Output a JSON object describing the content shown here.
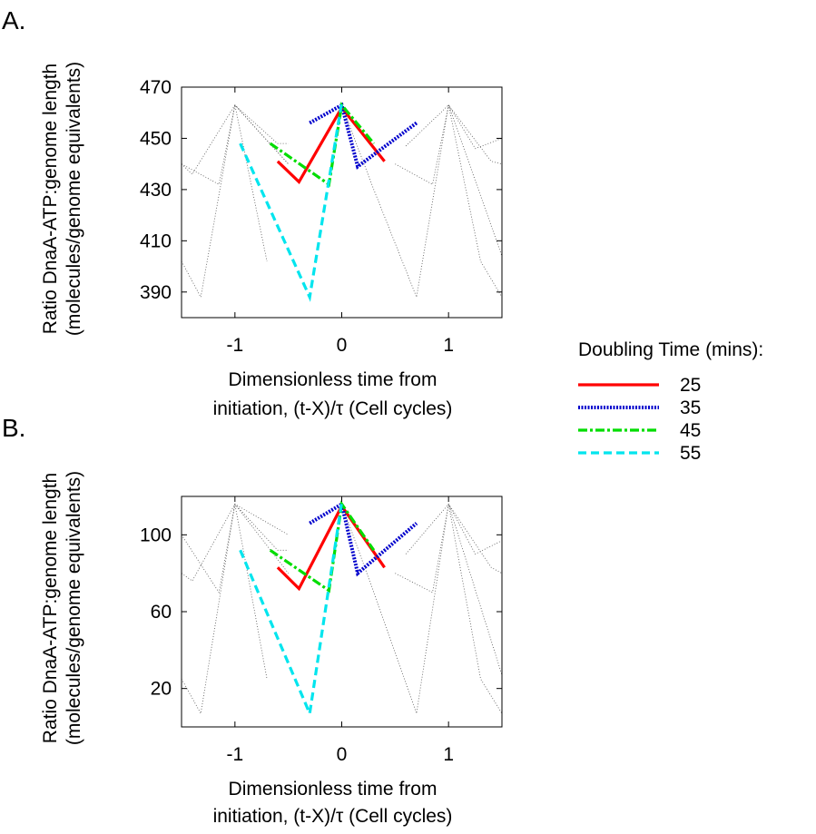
{
  "figure": {
    "legend": {
      "title": "Doubling Time (mins):",
      "entries": [
        {
          "label": "25",
          "color": "#ff0000",
          "style": "solid"
        },
        {
          "label": "35",
          "color": "#0000cc",
          "style": "dotted"
        },
        {
          "label": "45",
          "color": "#00dd00",
          "style": "dashdot"
        },
        {
          "label": "55",
          "color": "#00e5ee",
          "style": "dashed"
        }
      ]
    }
  },
  "chart_data": [
    {
      "panel": "A.",
      "type": "line",
      "xlabel": [
        "Dimensionless time from",
        "initiation, (t-X)/τ (Cell cycles)"
      ],
      "ylabel": [
        "Ratio DnaA-ATP:genome length",
        "(molecules/genome equivalents)"
      ],
      "xlim": [
        -1.5,
        1.5
      ],
      "ylim": [
        380,
        470
      ],
      "xticks": [
        "-1",
        "0",
        "1"
      ],
      "xtick_values": [
        -1,
        0,
        1
      ],
      "yticks": [
        "390",
        "410",
        "430",
        "450",
        "470"
      ],
      "ytick_values": [
        390,
        410,
        430,
        450,
        470
      ],
      "series": [
        {
          "name": "25",
          "color": "#ff0000",
          "style": "solid",
          "x": [
            -0.6,
            -0.4,
            0.0,
            0.4
          ],
          "y": [
            441,
            433,
            462,
            441
          ]
        },
        {
          "name": "35",
          "color": "#0000cc",
          "style": "dotted",
          "x": [
            -0.3,
            0.0,
            0.15,
            0.7
          ],
          "y": [
            456,
            463,
            439,
            456
          ]
        },
        {
          "name": "45",
          "color": "#00dd00",
          "style": "dashdot",
          "x": [
            -0.67,
            -0.12,
            0.0,
            0.3
          ],
          "y": [
            448,
            432,
            463,
            448
          ]
        },
        {
          "name": "55",
          "color": "#00e5ee",
          "style": "dashed",
          "x": [
            -0.95,
            -0.3,
            0.0
          ],
          "y": [
            448,
            388,
            464
          ]
        }
      ],
      "background_traces": [
        {
          "x": [
            -1.5,
            -1.32,
            -1.0,
            -0.7
          ],
          "y": [
            402,
            388,
            463,
            402
          ]
        },
        {
          "x": [
            -1.5,
            -1.4,
            -1.0,
            -0.5
          ],
          "y": [
            440,
            436,
            463,
            440
          ]
        },
        {
          "x": [
            -1.5,
            -1.15,
            -1.0,
            -0.5
          ],
          "y": [
            440,
            432,
            463,
            440
          ]
        },
        {
          "x": [
            -1.0,
            -0.6,
            -0.5
          ],
          "y": [
            463,
            448,
            448
          ]
        },
        {
          "x": [
            0.0,
            0.3,
            0.7,
            1.0,
            1.3,
            1.5
          ],
          "y": [
            463,
            430,
            388,
            463,
            402,
            388
          ]
        },
        {
          "x": [
            0.5,
            0.85,
            1.0,
            1.25,
            1.5
          ],
          "y": [
            440,
            432,
            463,
            446,
            450
          ]
        },
        {
          "x": [
            0.6,
            1.0,
            1.4,
            1.5
          ],
          "y": [
            447,
            463,
            441,
            440
          ]
        },
        {
          "x": [
            1.0,
            1.5
          ],
          "y": [
            463,
            404
          ]
        }
      ]
    },
    {
      "panel": "B.",
      "type": "line",
      "xlabel": [
        "Dimensionless time from",
        "initiation, (t-X)/τ (Cell cycles)"
      ],
      "ylabel": [
        "Ratio DnaA-ATP:genome length",
        "(molecules/genome equivalents)"
      ],
      "xlim": [
        -1.5,
        1.5
      ],
      "ylim": [
        0,
        120
      ],
      "xticks": [
        "-1",
        "0",
        "1"
      ],
      "xtick_values": [
        -1,
        0,
        1
      ],
      "yticks": [
        "20",
        "60",
        "100"
      ],
      "ytick_values": [
        20,
        60,
        100
      ],
      "series": [
        {
          "name": "25",
          "color": "#ff0000",
          "style": "solid",
          "x": [
            -0.6,
            -0.4,
            0.0,
            0.4
          ],
          "y": [
            83,
            72,
            115,
            83
          ]
        },
        {
          "name": "35",
          "color": "#0000cc",
          "style": "dotted",
          "x": [
            -0.3,
            0.0,
            0.15,
            0.7
          ],
          "y": [
            106,
            116,
            80,
            106
          ]
        },
        {
          "name": "45",
          "color": "#00dd00",
          "style": "dashdot",
          "x": [
            -0.67,
            -0.12,
            0.0,
            0.3
          ],
          "y": [
            92,
            71,
            116,
            92
          ]
        },
        {
          "name": "55",
          "color": "#00e5ee",
          "style": "dashed",
          "x": [
            -0.95,
            -0.3,
            0.0
          ],
          "y": [
            92,
            7,
            117
          ]
        }
      ],
      "background_traces": [
        {
          "x": [
            -1.5,
            -1.32,
            -1.0,
            -0.7
          ],
          "y": [
            25,
            7,
            116,
            25
          ]
        },
        {
          "x": [
            -1.5,
            -1.4,
            -1.0,
            -0.5
          ],
          "y": [
            80,
            76,
            116,
            80
          ]
        },
        {
          "x": [
            -1.5,
            -1.15,
            -1.0,
            -0.5
          ],
          "y": [
            100,
            70,
            116,
            100
          ]
        },
        {
          "x": [
            -1.0,
            -0.6,
            -0.5
          ],
          "y": [
            116,
            92,
            92
          ]
        },
        {
          "x": [
            0.0,
            0.3,
            0.7,
            1.0,
            1.3,
            1.5
          ],
          "y": [
            116,
            70,
            7,
            116,
            25,
            7
          ]
        },
        {
          "x": [
            0.5,
            0.85,
            1.0,
            1.25,
            1.5
          ],
          "y": [
            80,
            70,
            116,
            90,
            97
          ]
        },
        {
          "x": [
            0.6,
            1.0,
            1.4,
            1.5
          ],
          "y": [
            90,
            116,
            83,
            80
          ]
        },
        {
          "x": [
            1.0,
            1.5
          ],
          "y": [
            116,
            27
          ]
        }
      ]
    }
  ]
}
